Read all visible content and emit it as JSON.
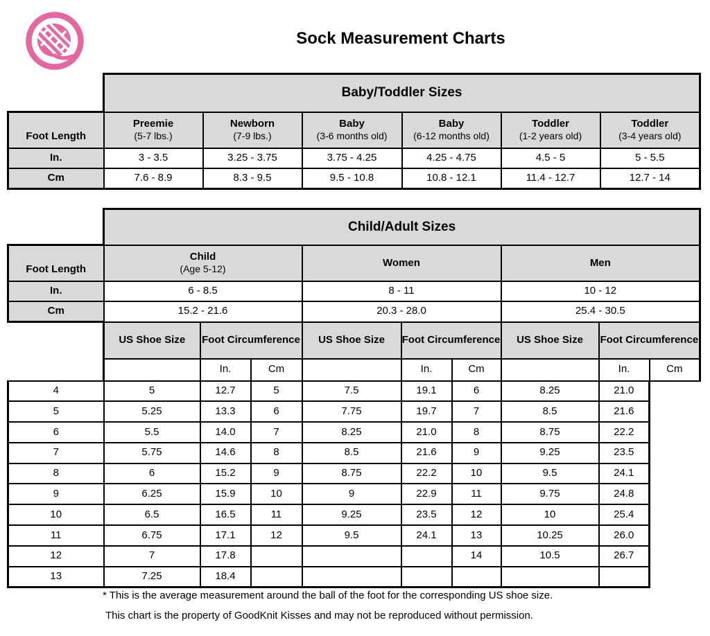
{
  "page": {
    "title": "Sock Measurement Charts",
    "footnote1": "* This is the average measurement around the ball of the foot for the corresponding US shoe size.",
    "footnote2": "This chart is the property of GoodKnit Kisses and may not be reproduced without permission.",
    "logo_icon": "yarn-ball",
    "logo_color": "#e5679f",
    "header_fill_color": "#d9d9d9"
  },
  "baby_table": {
    "title": "Baby/Toddler Sizes",
    "row_label_header": "Foot Length",
    "row_labels": {
      "in": "In.",
      "cm": "Cm"
    },
    "columns": [
      {
        "name": "Preemie",
        "sub": "(5-7 lbs.)",
        "in": "3 - 3.5",
        "cm": "7.6 - 8.9"
      },
      {
        "name": "Newborn",
        "sub": "(7-9 lbs.)",
        "in": "3.25 - 3.75",
        "cm": "8.3 - 9.5"
      },
      {
        "name": "Baby",
        "sub": "(3-6 months old)",
        "in": "3.75 - 4.25",
        "cm": "9.5 - 10.8"
      },
      {
        "name": "Baby",
        "sub": "(6-12 months old)",
        "in": "4.25 - 4.75",
        "cm": "10.8 - 12.1"
      },
      {
        "name": "Toddler",
        "sub": "(1-2 years old)",
        "in": "4.5 - 5",
        "cm": "11.4 - 12.7"
      },
      {
        "name": "Toddler",
        "sub": "(3-4 years old)",
        "in": "5 - 5.5",
        "cm": "12.7 - 14"
      }
    ]
  },
  "adult_table": {
    "title": "Child/Adult Sizes",
    "row_label_header": "Foot Length",
    "row_labels": {
      "in": "In.",
      "cm": "Cm"
    },
    "groups": [
      {
        "name": "Child",
        "sub": "(Age 5-12)",
        "in": "6 - 8.5",
        "cm": "15.2 - 21.6"
      },
      {
        "name": "Women",
        "sub": "",
        "in": "8 - 11",
        "cm": "20.3 - 28.0"
      },
      {
        "name": "Men",
        "sub": "",
        "in": "10 - 12",
        "cm": "25.4 - 30.5"
      }
    ],
    "shoe_header": {
      "size": "US Shoe Size",
      "circ": "Foot Circumference",
      "in": "In.",
      "cm": "Cm"
    },
    "shoe_rows": [
      [
        "4",
        "5",
        "12.7",
        "5",
        "7.5",
        "19.1",
        "6",
        "8.25",
        "21.0"
      ],
      [
        "5",
        "5.25",
        "13.3",
        "6",
        "7.75",
        "19.7",
        "7",
        "8.5",
        "21.6"
      ],
      [
        "6",
        "5.5",
        "14.0",
        "7",
        "8.25",
        "21.0",
        "8",
        "8.75",
        "22.2"
      ],
      [
        "7",
        "5.75",
        "14.6",
        "8",
        "8.5",
        "21.6",
        "9",
        "9.25",
        "23.5"
      ],
      [
        "8",
        "6",
        "15.2",
        "9",
        "8.75",
        "22.2",
        "10",
        "9.5",
        "24.1"
      ],
      [
        "9",
        "6.25",
        "15.9",
        "10",
        "9",
        "22.9",
        "11",
        "9.75",
        "24.8"
      ],
      [
        "10",
        "6.5",
        "16.5",
        "11",
        "9.25",
        "23.5",
        "12",
        "10",
        "25.4"
      ],
      [
        "11",
        "6.75",
        "17.1",
        "12",
        "9.5",
        "24.1",
        "13",
        "10.25",
        "26.0"
      ],
      [
        "12",
        "7",
        "17.8",
        "",
        "",
        "",
        "14",
        "10.5",
        "26.7"
      ],
      [
        "13",
        "7.25",
        "18.4",
        "",
        "",
        "",
        "",
        "",
        ""
      ]
    ]
  }
}
